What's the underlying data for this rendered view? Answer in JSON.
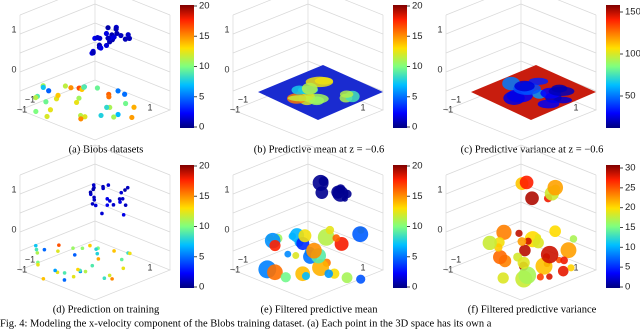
{
  "figure": {
    "panels": [
      {
        "caption": "(a) Blobs datasets",
        "colorbar_ticks": [
          "0",
          "5",
          "10",
          "15",
          "20"
        ],
        "axis_labels": [
          "1",
          "0",
          "−1",
          "−1",
          "1"
        ]
      },
      {
        "caption": "(b) Predictive mean at z = −0.6",
        "colorbar_ticks": [
          "0",
          "5",
          "10",
          "15",
          "20"
        ],
        "axis_labels": [
          "1",
          "0",
          "−1",
          "−1",
          "1"
        ]
      },
      {
        "caption": "(c) Predictive variance at z = −0.6",
        "colorbar_ticks": [
          "50",
          "100",
          "150"
        ],
        "axis_labels": [
          "1",
          "0",
          "−1",
          "−1",
          "1"
        ]
      },
      {
        "caption": "(d) Prediction on training",
        "colorbar_ticks": [
          "0",
          "5",
          "10",
          "15",
          "20"
        ],
        "axis_labels": [
          "1",
          "0",
          "−1",
          "−1",
          "1"
        ]
      },
      {
        "caption": "(e) Filtered predictive mean",
        "colorbar_ticks": [
          "0",
          "5",
          "10",
          "15",
          "20"
        ],
        "axis_labels": [
          "1",
          "0",
          "−1",
          "−1",
          "1"
        ]
      },
      {
        "caption": "(f) Filtered predictive variance",
        "colorbar_ticks": [
          "0",
          "5",
          "10",
          "15",
          "20",
          "25",
          "30"
        ],
        "axis_labels": [
          "1",
          "0",
          "−1",
          "−1",
          "1"
        ]
      }
    ],
    "caption": "Fig. 4: Modeling the x-velocity component of the Blobs training dataset. (a) Each point in the 3D space has its own a"
  }
}
